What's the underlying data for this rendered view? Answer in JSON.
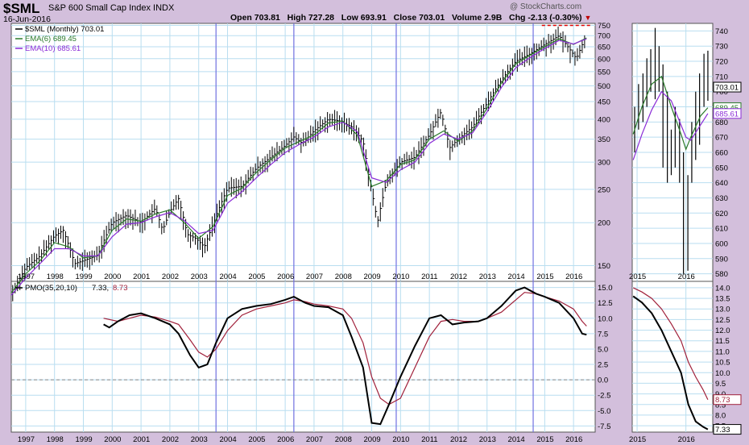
{
  "header": {
    "symbol": "$SML",
    "name": "S&P 600 Small Cap Index",
    "exchange": "INDX",
    "date": "16-Jun-2016",
    "open_label": "Open",
    "open": "703.81",
    "high_label": "High",
    "high": "727.28",
    "low_label": "Low",
    "low": "693.91",
    "close_label": "Close",
    "close": "703.01",
    "volume_label": "Volume",
    "volume": "2.9B",
    "chg_label": "Chg",
    "chg": "-2.13 (-0.30%)",
    "watermark": "@ StockCharts.com"
  },
  "colors": {
    "price": "#000000",
    "ema6": "#2a7a2a",
    "ema10": "#8a2bd6",
    "pmo": "#000000",
    "pmo_signal": "#a0203a",
    "vline": "#7070e0",
    "grid": "#b9def0",
    "resistance": "#e00000"
  },
  "chart_data": [
    {
      "type": "line",
      "name": "price_panel",
      "scale": "log",
      "ylim": [
        135,
        760
      ],
      "xlim": [
        1996.5,
        2016.75
      ],
      "legend": [
        {
          "text": "$SML (Monthly) 703.01",
          "color": "#000000"
        },
        {
          "text": "EMA(6) 689.45",
          "color": "#2a7a2a"
        },
        {
          "text": "EMA(10) 685.61",
          "color": "#8a2bd6"
        }
      ],
      "y_ticks": [
        150,
        200,
        250,
        300,
        350,
        400,
        450,
        500,
        550,
        600,
        650,
        700,
        750
      ],
      "x_ticks": [
        "1997",
        "1998",
        "1999",
        "2000",
        "2001",
        "2002",
        "2003",
        "2004",
        "2005",
        "2006",
        "2007",
        "2008",
        "2009",
        "2010",
        "2011",
        "2012",
        "2013",
        "2014",
        "2015",
        "2016"
      ],
      "series": [
        {
          "name": "$SML (Monthly)",
          "x": [
            1996.5,
            1997,
            1997.5,
            1998,
            1998.3,
            1998.7,
            1999,
            1999.5,
            2000,
            2000.5,
            2001,
            2001.5,
            2001.75,
            2002,
            2002.3,
            2002.6,
            2002.9,
            2003.2,
            2003.5,
            2004,
            2004.5,
            2005,
            2005.5,
            2006,
            2006.3,
            2006.6,
            2007,
            2007.5,
            2007.9,
            2008.3,
            2008.7,
            2008.9,
            2009.2,
            2009.5,
            2010,
            2010.5,
            2011,
            2011.4,
            2011.7,
            2012,
            2012.5,
            2013,
            2013.5,
            2014,
            2014.5,
            2015,
            2015.5,
            2015.8,
            2016.1,
            2016.45
          ],
          "values": [
            123,
            148,
            160,
            183,
            190,
            152,
            155,
            161,
            200,
            210,
            200,
            220,
            190,
            215,
            235,
            185,
            180,
            170,
            198,
            252,
            255,
            288,
            310,
            335,
            355,
            340,
            370,
            400,
            395,
            380,
            345,
            270,
            200,
            260,
            300,
            310,
            360,
            420,
            330,
            350,
            380,
            445,
            520,
            590,
            620,
            660,
            700,
            650,
            600,
            703
          ]
        },
        {
          "name": "EMA(6)",
          "x": [
            1996.5,
            1997,
            1997.5,
            1998,
            1998.5,
            1999,
            1999.5,
            2000,
            2000.5,
            2001,
            2001.5,
            2002,
            2002.5,
            2003,
            2003.5,
            2004,
            2004.5,
            2005,
            2005.5,
            2006,
            2006.5,
            2007,
            2007.5,
            2008,
            2008.5,
            2009,
            2009.5,
            2010,
            2010.5,
            2011,
            2011.5,
            2012,
            2012.5,
            2013,
            2013.5,
            2014,
            2014.5,
            2015,
            2015.5,
            2016,
            2016.45
          ],
          "values": [
            125,
            142,
            155,
            175,
            170,
            158,
            160,
            190,
            205,
            202,
            212,
            218,
            200,
            180,
            195,
            240,
            252,
            280,
            305,
            330,
            345,
            360,
            390,
            395,
            360,
            255,
            265,
            295,
            305,
            350,
            370,
            345,
            370,
            430,
            510,
            580,
            615,
            650,
            685,
            660,
            689.45
          ]
        },
        {
          "name": "EMA(10)",
          "x": [
            1996.5,
            1997,
            1997.5,
            1998,
            1998.5,
            1999,
            1999.5,
            2000,
            2000.5,
            2001,
            2001.5,
            2002,
            2002.5,
            2003,
            2003.5,
            2004,
            2004.5,
            2005,
            2005.5,
            2006,
            2006.5,
            2007,
            2007.5,
            2008,
            2008.5,
            2009,
            2009.5,
            2010,
            2010.5,
            2011,
            2011.5,
            2012,
            2012.5,
            2013,
            2013.5,
            2014,
            2014.5,
            2015,
            2015.5,
            2016,
            2016.45
          ],
          "values": [
            123,
            138,
            152,
            168,
            168,
            160,
            160,
            182,
            198,
            200,
            208,
            214,
            203,
            186,
            190,
            228,
            246,
            270,
            295,
            320,
            338,
            355,
            380,
            392,
            368,
            270,
            262,
            285,
            300,
            340,
            362,
            350,
            365,
            420,
            495,
            565,
            605,
            642,
            678,
            662,
            685.61
          ]
        }
      ]
    },
    {
      "type": "line",
      "name": "pmo_panel",
      "ylim": [
        -8.5,
        16
      ],
      "xlim": [
        1996.5,
        2016.75
      ],
      "legend": [
        {
          "text": "PMO(35,20,10)",
          "color": "#000000"
        },
        {
          "text": "7.33,",
          "color": "#000000"
        },
        {
          "text": "8.73",
          "color": "#a0203a"
        }
      ],
      "y_ticks": [
        -7.5,
        -5.0,
        -2.5,
        0.0,
        2.5,
        5.0,
        7.5,
        10.0,
        12.5,
        15.0
      ],
      "x_ticks": [
        "1997",
        "1998",
        "1999",
        "2000",
        "2001",
        "2002",
        "2003",
        "2004",
        "2005",
        "2006",
        "2007",
        "2008",
        "2009",
        "2010",
        "2011",
        "2012",
        "2013",
        "2014",
        "2015",
        "2016"
      ],
      "series": [
        {
          "name": "PMO",
          "x": [
            1999.7,
            1999.9,
            2000.2,
            2000.6,
            2001.0,
            2001.5,
            2002.0,
            2002.3,
            2002.7,
            2003.0,
            2003.3,
            2003.6,
            2004.0,
            2004.5,
            2005.0,
            2005.5,
            2006.0,
            2006.3,
            2006.7,
            2007.0,
            2007.5,
            2008.0,
            2008.3,
            2008.7,
            2009.0,
            2009.3,
            2009.6,
            2010.0,
            2010.5,
            2011.0,
            2011.4,
            2011.8,
            2012.2,
            2012.7,
            2013.0,
            2013.5,
            2014.0,
            2014.3,
            2014.7,
            2015.0,
            2015.5,
            2016.0,
            2016.3,
            2016.45
          ],
          "values": [
            9.0,
            8.5,
            9.5,
            10.5,
            10.8,
            10.0,
            9.0,
            7.5,
            4.0,
            2.0,
            2.5,
            6.0,
            10.0,
            11.5,
            12.0,
            12.3,
            13.0,
            13.5,
            12.5,
            12.0,
            11.8,
            10.5,
            7.0,
            2.0,
            -7.0,
            -7.2,
            -4.0,
            0.5,
            5.5,
            10.0,
            10.5,
            9.0,
            9.3,
            9.5,
            10.0,
            12.0,
            14.5,
            15.0,
            14.0,
            13.5,
            12.5,
            10.0,
            7.5,
            7.33
          ]
        },
        {
          "name": "PMO Signal",
          "x": [
            1999.7,
            2000.2,
            2000.6,
            2001.0,
            2001.5,
            2002.0,
            2002.3,
            2002.7,
            2003.0,
            2003.3,
            2003.6,
            2004.0,
            2004.5,
            2005.0,
            2005.5,
            2006.0,
            2006.3,
            2006.7,
            2007.0,
            2007.5,
            2008.0,
            2008.3,
            2008.7,
            2009.0,
            2009.3,
            2009.6,
            2010.0,
            2010.5,
            2011.0,
            2011.4,
            2011.8,
            2012.2,
            2012.7,
            2013.0,
            2013.5,
            2014.0,
            2014.3,
            2014.7,
            2015.0,
            2015.5,
            2016.0,
            2016.3,
            2016.45
          ],
          "values": [
            10.0,
            9.5,
            10.0,
            10.5,
            10.2,
            9.5,
            9.0,
            6.5,
            4.5,
            3.7,
            5.0,
            8.0,
            10.5,
            11.5,
            12.0,
            12.5,
            13.0,
            12.7,
            12.3,
            12.0,
            11.5,
            10.0,
            6.0,
            0.5,
            -3.0,
            -4.0,
            -3.0,
            2.0,
            7.0,
            9.5,
            9.8,
            9.5,
            9.5,
            10.0,
            11.0,
            13.0,
            14.2,
            14.0,
            13.5,
            12.8,
            11.5,
            9.5,
            8.73
          ]
        }
      ]
    },
    {
      "type": "line",
      "name": "zoom_price_panel",
      "ylim": [
        575,
        745
      ],
      "xlim": [
        2014.9,
        2016.55
      ],
      "y_ticks": [
        580,
        590,
        600,
        610,
        620,
        630,
        640,
        650,
        660,
        670,
        680,
        690,
        700,
        710,
        720,
        730,
        740
      ],
      "x_ticks": [
        "2015",
        "2016"
      ],
      "value_tags": [
        {
          "text": "703.01",
          "value": 703.01,
          "color": "#000000"
        },
        {
          "text": "689.45",
          "value": 689.45,
          "color": "#2a7a2a"
        },
        {
          "text": "685.61",
          "value": 685.61,
          "color": "#8a2bd6"
        }
      ],
      "series": [
        {
          "name": "EMA(6)",
          "x": [
            2014.92,
            2015.1,
            2015.3,
            2015.5,
            2015.7,
            2015.9,
            2016.0,
            2016.1,
            2016.3,
            2016.45
          ],
          "values": [
            672,
            690,
            705,
            710,
            690,
            672,
            662,
            670,
            684,
            689.45
          ]
        },
        {
          "name": "EMA(10)",
          "x": [
            2014.92,
            2015.1,
            2015.3,
            2015.5,
            2015.7,
            2015.9,
            2016.0,
            2016.1,
            2016.3,
            2016.45
          ],
          "values": [
            655,
            672,
            688,
            700,
            694,
            678,
            670,
            668,
            678,
            685.61
          ]
        }
      ]
    },
    {
      "type": "line",
      "name": "zoom_pmo_panel",
      "ylim": [
        7.2,
        14.3
      ],
      "xlim": [
        2014.9,
        2016.55
      ],
      "y_ticks": [
        7.5,
        8.0,
        8.5,
        9.0,
        9.5,
        10.0,
        10.5,
        11.0,
        11.5,
        12.0,
        12.5,
        13.0,
        13.5,
        14.0
      ],
      "x_ticks": [
        "2015",
        "2016"
      ],
      "value_tags": [
        {
          "text": "8.73",
          "value": 8.73,
          "color": "#a0203a"
        },
        {
          "text": "7.33",
          "value": 7.33,
          "color": "#000000"
        }
      ],
      "series": [
        {
          "name": "PMO",
          "x": [
            2014.92,
            2015.1,
            2015.3,
            2015.5,
            2015.7,
            2015.9,
            2016.05,
            2016.2,
            2016.35,
            2016.45
          ],
          "values": [
            13.6,
            13.3,
            12.8,
            12.0,
            11.0,
            10.0,
            8.5,
            7.7,
            7.45,
            7.33
          ]
        },
        {
          "name": "PMO Signal",
          "x": [
            2014.92,
            2015.1,
            2015.3,
            2015.5,
            2015.7,
            2015.9,
            2016.05,
            2016.2,
            2016.35,
            2016.45
          ],
          "values": [
            14.0,
            13.8,
            13.5,
            13.0,
            12.3,
            11.5,
            10.5,
            9.8,
            9.2,
            8.73
          ]
        }
      ]
    }
  ]
}
